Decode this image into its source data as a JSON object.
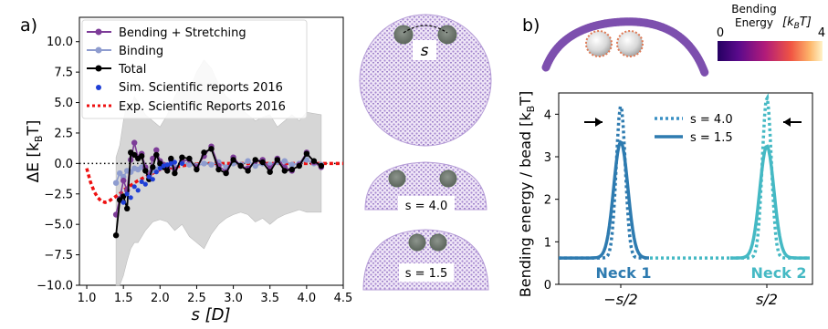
{
  "colors": {
    "bending_stretching": "#7d3c98",
    "binding": "#8e9ccf",
    "total": "#000000",
    "sim": "#1f3fd6",
    "exp": "#ee1111",
    "band": "#cfcfcf",
    "neck1": "#2e7bb0",
    "neck2": "#45b9c4",
    "membrane": "#9d7cc4",
    "particle": "#8f8f8f"
  },
  "panel_a": {
    "label": "a)",
    "tick_labels_y": [
      "10.0",
      "7.5",
      "5.0",
      "2.5",
      "0.0",
      "−2.5",
      "−5.0",
      "−7.5",
      "−10.0"
    ],
    "tick_labels_x": [
      "1.0",
      "1.5",
      "2.0",
      "2.5",
      "3.0",
      "3.5",
      "4.0",
      "4.5"
    ],
    "ylabel": "ΔE [k",
    "ylabel_sub": "B",
    "ylabel_end": "T]",
    "xlabel": "s [D]",
    "legend": [
      "Bending + Stretching",
      "Binding",
      "Total",
      "Sim. Scientific reports 2016",
      "Exp. Scientific Reports 2016"
    ],
    "snapshot_labels": [
      "s",
      "s = 4.0",
      "s = 1.5"
    ]
  },
  "panel_b": {
    "label": "b)",
    "colorbar_title_1": "Bending",
    "colorbar_title_2": "Energy",
    "colorbar_unit": "[k",
    "colorbar_unit_sub": "B",
    "colorbar_unit_end": "T]",
    "colorbar_min": "0",
    "colorbar_max": "4",
    "ylabel": "Bending energy / bead [k",
    "ylabel_sub": "B",
    "ylabel_end": "T]",
    "tick_labels_y": [
      "0",
      "1",
      "2",
      "3",
      "4"
    ],
    "tick_labels_x": [
      "−s/2",
      "s/2"
    ],
    "legend": [
      "s = 4.0",
      "s = 1.5"
    ],
    "neck_labels": [
      "Neck 1",
      "Neck 2"
    ]
  },
  "chart_data": [
    {
      "type": "line",
      "title": "",
      "xlabel": "s [D]",
      "ylabel": "ΔE [kBT]",
      "xlim": [
        0.9,
        4.5
      ],
      "ylim": [
        -10,
        12
      ],
      "grid": false,
      "legend_position": "top-left",
      "reference_line_y": 0,
      "x": [
        1.4,
        1.45,
        1.5,
        1.55,
        1.6,
        1.65,
        1.7,
        1.75,
        1.8,
        1.85,
        1.9,
        1.95,
        2.0,
        2.05,
        2.1,
        2.15,
        2.2,
        2.3,
        2.4,
        2.5,
        2.6,
        2.7,
        2.8,
        2.9,
        3.0,
        3.1,
        3.2,
        3.3,
        3.4,
        3.5,
        3.6,
        3.7,
        3.8,
        3.9,
        4.0,
        4.1,
        4.2
      ],
      "series": [
        {
          "name": "Bending + Stretching",
          "values": [
            -4.2,
            -2.9,
            -1.4,
            -2.2,
            0.3,
            1.7,
            0.5,
            0.8,
            -0.3,
            -1.0,
            0.4,
            1.1,
            0.2,
            -0.1,
            -0.4,
            0.3,
            -0.5,
            0.2,
            0.3,
            -0.3,
            0.6,
            1.4,
            -0.2,
            -0.7,
            0.5,
            -0.2,
            -0.4,
            0.2,
            0.3,
            -0.4,
            0.4,
            -0.3,
            -0.6,
            -0.1,
            0.9,
            0.1,
            -0.3
          ]
        },
        {
          "name": "Binding",
          "values": [
            -1.6,
            -0.8,
            -1.1,
            -0.6,
            -0.7,
            -0.4,
            -0.5,
            -0.3,
            -0.4,
            -0.8,
            -0.6,
            -0.5,
            -0.2,
            -0.3,
            -0.2,
            -0.1,
            -0.3,
            0.1,
            -0.1,
            -0.2,
            0.0,
            -0.1,
            0.1,
            -0.3,
            0.0,
            -0.1,
            0.2,
            -0.2,
            0.0,
            -0.1,
            0.1,
            0.2,
            -0.1,
            0.0,
            0.3,
            0.0,
            -0.1
          ]
        },
        {
          "name": "Total",
          "values": [
            -5.9,
            -3.0,
            -2.7,
            -3.7,
            0.9,
            0.7,
            0.4,
            0.6,
            -0.6,
            -1.3,
            -0.3,
            0.7,
            0.0,
            -0.3,
            -0.6,
            0.4,
            -0.8,
            0.5,
            0.4,
            -0.5,
            0.9,
            1.2,
            -0.5,
            -0.8,
            0.3,
            -0.2,
            -0.6,
            0.3,
            0.1,
            -0.7,
            0.3,
            -0.6,
            -0.5,
            -0.2,
            0.8,
            0.2,
            -0.2
          ]
        }
      ],
      "band": {
        "x": [
          1.4,
          1.45,
          1.5,
          1.55,
          1.6,
          1.65,
          1.7,
          1.8,
          1.9,
          2.0,
          2.1,
          2.2,
          2.3,
          2.4,
          2.5,
          2.6,
          2.7,
          2.8,
          2.9,
          3.0,
          3.1,
          3.2,
          3.3,
          3.4,
          3.5,
          3.6,
          3.7,
          3.8,
          3.9,
          4.0,
          4.1,
          4.2
        ],
        "upper": [
          0.5,
          1.5,
          3.5,
          5.0,
          4.5,
          5.5,
          5.0,
          4.0,
          3.5,
          3.0,
          4.0,
          5.5,
          6.5,
          6.0,
          7.5,
          8.5,
          7.8,
          6.5,
          5.5,
          5.0,
          4.5,
          4.0,
          3.5,
          3.8,
          4.0,
          3.0,
          3.5,
          4.0,
          3.5,
          4.2,
          4.1,
          4.0
        ],
        "lower": [
          -10.0,
          -10.0,
          -9.2,
          -8.0,
          -7.0,
          -6.5,
          -6.5,
          -5.5,
          -4.8,
          -4.6,
          -4.8,
          -5.5,
          -5.0,
          -6.0,
          -6.5,
          -7.0,
          -5.8,
          -5.0,
          -4.5,
          -4.2,
          -4.0,
          -4.2,
          -4.8,
          -4.5,
          -5.0,
          -4.5,
          -4.2,
          -4.0,
          -3.8,
          -4.0,
          -4.0,
          -4.0
        ]
      },
      "sim_points": {
        "name": "Sim. Scientific reports 2016",
        "x": [
          1.5,
          1.55,
          1.6,
          1.65,
          1.7,
          1.75,
          1.8,
          1.85,
          1.9,
          1.95,
          2.0,
          2.05,
          2.1,
          2.15,
          2.2,
          2.3
        ],
        "y": [
          -3.2,
          -2.5,
          -2.8,
          -1.9,
          -2.2,
          -1.5,
          -1.7,
          -1.1,
          -1.3,
          -0.7,
          -0.4,
          -0.2,
          -0.1,
          0.0,
          0.1,
          0.0
        ]
      },
      "exp_curve": {
        "name": "Exp. Scientific Reports 2016",
        "x": [
          1.0,
          1.05,
          1.1,
          1.15,
          1.2,
          1.25,
          1.3,
          1.35,
          1.4,
          1.45,
          1.5,
          1.6,
          1.7,
          1.8,
          1.9,
          2.0,
          2.2,
          2.4,
          2.6,
          2.8,
          3.0,
          3.5,
          4.0,
          4.5
        ],
        "y": [
          -0.4,
          -1.5,
          -2.3,
          -2.8,
          -3.1,
          -3.2,
          -3.1,
          -2.9,
          -2.7,
          -2.5,
          -2.2,
          -1.8,
          -1.4,
          -1.1,
          -0.8,
          -0.5,
          -0.3,
          -0.1,
          0.0,
          0.0,
          0.0,
          0.0,
          0.0,
          0.0
        ]
      }
    },
    {
      "type": "line",
      "title": "",
      "xlabel": "",
      "ylabel": "Bending energy / bead [kBT]",
      "ylim": [
        0,
        4.5
      ],
      "x_tick_labels": [
        "−s/2",
        "s/2"
      ],
      "grid": false,
      "series": [
        {
          "name": "s = 4.0",
          "line": "dotted",
          "peaks_y": [
            4.2,
            4.4
          ],
          "baseline_y": 0.62
        },
        {
          "name": "s = 1.5",
          "line": "solid",
          "peaks_y": [
            3.35,
            3.25
          ],
          "baseline_y": 0.62
        }
      ]
    }
  ]
}
